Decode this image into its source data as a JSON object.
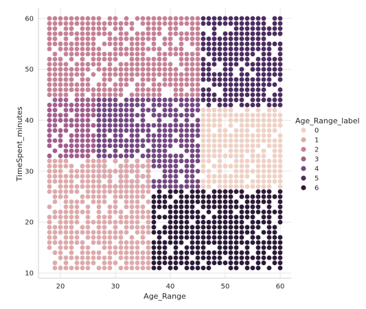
{
  "chart_data": {
    "type": "scatter",
    "xlabel": "Age_Range",
    "ylabel": "TimeSpent_minutes",
    "xlim": [
      16,
      62
    ],
    "ylim": [
      9,
      62
    ],
    "x_ticks": [
      20,
      30,
      40,
      50,
      60
    ],
    "y_ticks": [
      10,
      20,
      30,
      40,
      50,
      60
    ],
    "grid": true,
    "legend": {
      "title": "Age_Range_label",
      "placement": "right",
      "labels": [
        "0",
        "1",
        "2",
        "3",
        "4",
        "5",
        "6"
      ]
    },
    "colors": [
      "#efd1c6",
      "#dea9ab",
      "#c68196",
      "#a25e8e",
      "#744983",
      "#4b2c60",
      "#2b1a37"
    ],
    "grid_spacing": {
      "x": 1,
      "y": 1
    },
    "regions": [
      {
        "cluster": 5,
        "x": [
          46,
          60
        ],
        "y": [
          43,
          60
        ]
      },
      {
        "cluster": 2,
        "x": [
          18,
          45
        ],
        "y": [
          45,
          60
        ]
      },
      {
        "cluster": 0,
        "x": [
          46,
          60
        ],
        "y": [
          23,
          42
        ]
      },
      {
        "cluster": 4,
        "x": [
          27,
          45
        ],
        "y": [
          27,
          44
        ]
      },
      {
        "cluster": 3,
        "x": [
          18,
          26
        ],
        "y": [
          33,
          44
        ]
      },
      {
        "cluster": 1,
        "x": [
          18,
          36
        ],
        "y": [
          11,
          32
        ]
      },
      {
        "cluster": 6,
        "x": [
          37,
          60
        ],
        "y": [
          11,
          26
        ]
      }
    ]
  }
}
